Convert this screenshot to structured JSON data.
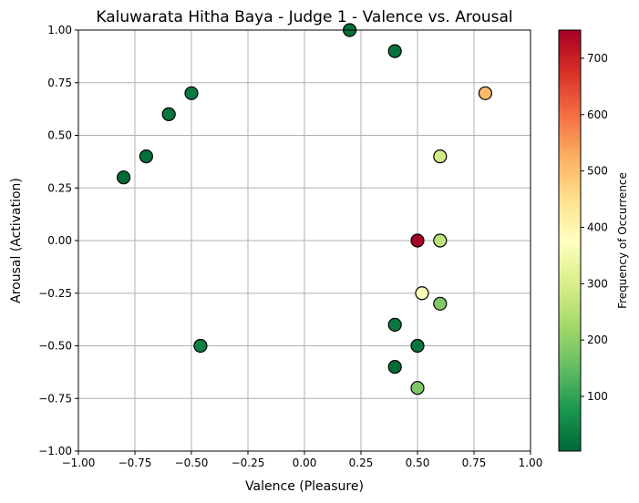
{
  "chart_data": {
    "type": "scatter",
    "title": "Kaluwarata Hitha Baya - Judge 1 - Valence vs. Arousal",
    "xlabel": "Valence (Pleasure)",
    "ylabel": "Arousal (Activation)",
    "xlim": [
      -1.0,
      1.0
    ],
    "ylim": [
      -1.0,
      1.0
    ],
    "grid": true,
    "x_ticks": [
      -1.0,
      -0.75,
      -0.5,
      -0.25,
      0.0,
      0.25,
      0.5,
      0.75,
      1.0
    ],
    "y_ticks": [
      -1.0,
      -0.75,
      -0.5,
      -0.25,
      0.0,
      0.25,
      0.5,
      0.75,
      1.0
    ],
    "x_tick_labels": [
      "−1.00",
      "−0.75",
      "−0.50",
      "−0.25",
      "0.00",
      "0.25",
      "0.50",
      "0.75",
      "1.00"
    ],
    "y_tick_labels": [
      "−1.00",
      "−0.75",
      "−0.50",
      "−0.25",
      "0.00",
      "0.25",
      "0.50",
      "0.75",
      "1.00"
    ],
    "colorbar": {
      "label": "Frequency of Occurrence",
      "colormap": "RdYlGn_r",
      "range": [
        3,
        750
      ],
      "ticks": [
        100,
        200,
        300,
        400,
        500,
        600,
        700
      ],
      "tick_labels": [
        "100",
        "200",
        "300",
        "400",
        "500",
        "600",
        "700"
      ]
    },
    "points": [
      {
        "x": 0.2,
        "y": 1.0,
        "value": 15
      },
      {
        "x": 0.4,
        "y": 0.9,
        "value": 20
      },
      {
        "x": -0.5,
        "y": 0.7,
        "value": 30
      },
      {
        "x": 0.8,
        "y": 0.7,
        "value": 510
      },
      {
        "x": -0.6,
        "y": 0.6,
        "value": 25
      },
      {
        "x": -0.7,
        "y": 0.4,
        "value": 15
      },
      {
        "x": 0.6,
        "y": 0.4,
        "value": 290
      },
      {
        "x": -0.8,
        "y": 0.3,
        "value": 10
      },
      {
        "x": 0.5,
        "y": 0.0,
        "value": 750
      },
      {
        "x": 0.6,
        "y": 0.0,
        "value": 260
      },
      {
        "x": 0.52,
        "y": -0.25,
        "value": 370
      },
      {
        "x": 0.6,
        "y": -0.3,
        "value": 180
      },
      {
        "x": 0.4,
        "y": -0.4,
        "value": 30
      },
      {
        "x": -0.46,
        "y": -0.5,
        "value": 40
      },
      {
        "x": 0.5,
        "y": -0.5,
        "value": 20
      },
      {
        "x": 0.4,
        "y": -0.6,
        "value": 10
      },
      {
        "x": 0.5,
        "y": -0.7,
        "value": 180
      }
    ]
  }
}
